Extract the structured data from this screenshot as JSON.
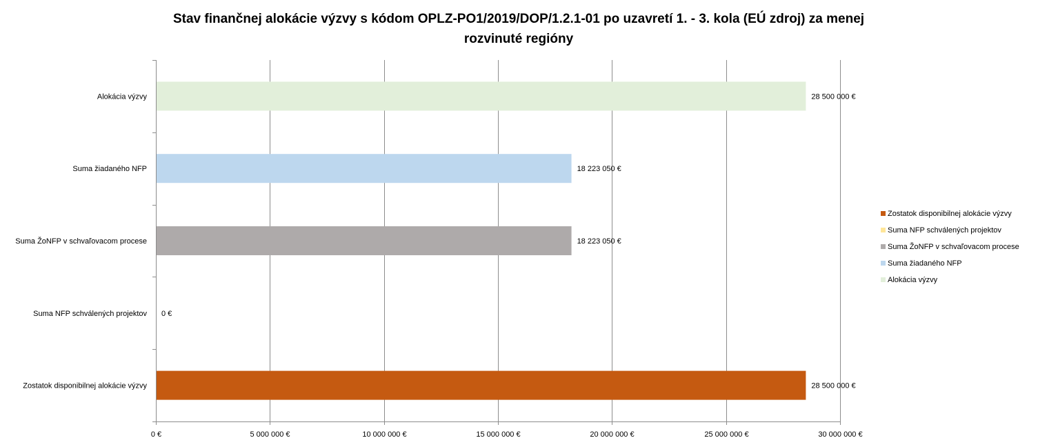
{
  "chart_data": {
    "type": "bar",
    "orientation": "horizontal",
    "title_lines": [
      "Stav finančnej alokácie výzvy s kódom OPLZ-PO1/2019/DOP/1.2.1-01 po uzavretí 1. - 3. kola (EÚ zdroj) za menej",
      "rozvinuté regióny"
    ],
    "categories": [
      "Alokácia výzvy",
      "Suma žiadaného NFP",
      "Suma ŽoNFP v schvaľovacom procese",
      "Suma NFP schválených projektov",
      "Zostatok disponibilnej alokácie výzvy"
    ],
    "values": [
      28500000,
      18223050,
      18223050,
      0,
      28500000
    ],
    "value_labels": [
      "28 500 000 €",
      "18 223 050 €",
      "18 223 050 €",
      "0 €",
      "28 500 000 €"
    ],
    "colors": [
      "#e2efda",
      "#bdd7ee",
      "#aeaaaa",
      "#ffe699",
      "#c55a11"
    ],
    "xlim": [
      0,
      30000000
    ],
    "x_ticks": [
      0,
      5000000,
      10000000,
      15000000,
      20000000,
      25000000,
      30000000
    ],
    "x_tick_labels": [
      "0 €",
      "5 000 000 €",
      "10 000 000 €",
      "15 000 000 €",
      "20 000 000 €",
      "25 000 000 €",
      "30 000 000 €"
    ],
    "grid": "vertical",
    "legend_position": "right",
    "legend": [
      {
        "label": "Zostatok disponibilnej alokácie výzvy",
        "color": "#c55a11"
      },
      {
        "label": "Suma NFP schválených projektov",
        "color": "#ffe699"
      },
      {
        "label": "Suma ŽoNFP v schvaľovacom procese",
        "color": "#aeaaaa"
      },
      {
        "label": "Suma žiadaného NFP",
        "color": "#bdd7ee"
      },
      {
        "label": "Alokácia výzvy",
        "color": "#e2efda"
      }
    ]
  }
}
